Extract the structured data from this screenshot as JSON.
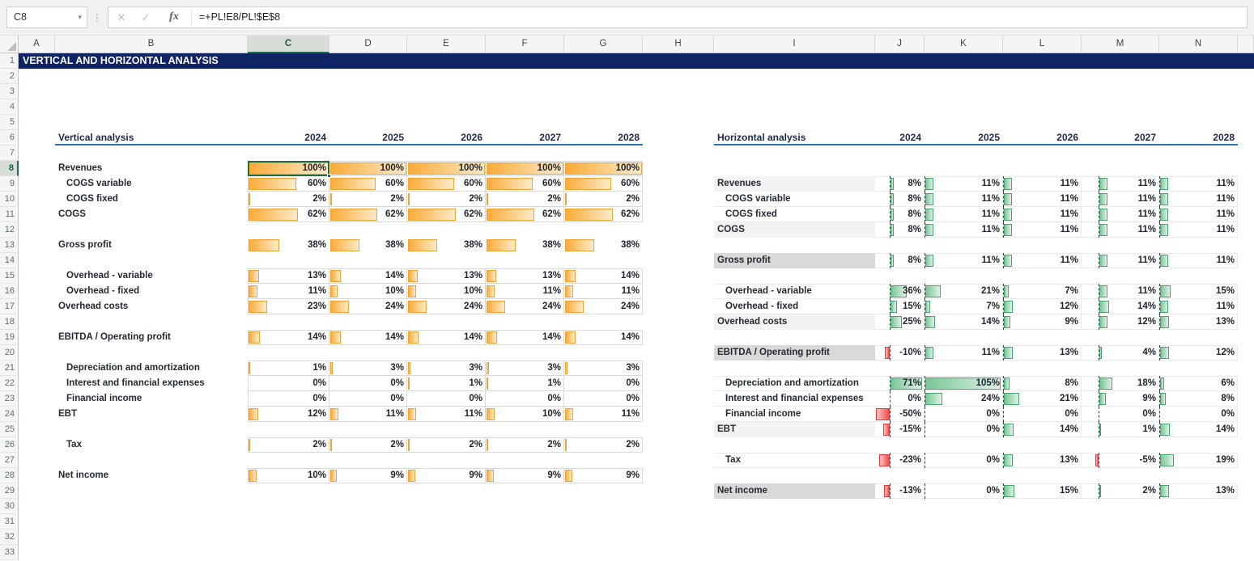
{
  "sheet_title": "VERTICAL AND HORIZONTAL ANALYSIS",
  "formula_bar": {
    "cell_ref": "C8",
    "formula": "=+PL!E8/PL!$E$8",
    "fx_label": "fx"
  },
  "selected_cell": {
    "column": "C",
    "row": 8
  },
  "columns": [
    "A",
    "B",
    "C",
    "D",
    "E",
    "F",
    "G",
    "H",
    "I",
    "J",
    "K",
    "L",
    "M",
    "N"
  ],
  "row_count": 33,
  "years": [
    "2024",
    "2025",
    "2026",
    "2027",
    "2028"
  ],
  "vertical": {
    "title": "Vertical analysis",
    "rows": [
      {
        "label": "Revenues",
        "row": 8,
        "indent": false,
        "boxed": true,
        "values": [
          100,
          100,
          100,
          100,
          100
        ]
      },
      {
        "label": "COGS variable",
        "row": 9,
        "indent": true,
        "boxed": true,
        "values": [
          60,
          60,
          60,
          60,
          60
        ]
      },
      {
        "label": "COGS fixed",
        "row": 10,
        "indent": true,
        "boxed": true,
        "values": [
          2,
          2,
          2,
          2,
          2
        ]
      },
      {
        "label": "COGS",
        "row": 11,
        "indent": false,
        "boxed": true,
        "values": [
          62,
          62,
          62,
          62,
          62
        ]
      },
      {
        "label": "Gross profit",
        "row": 13,
        "indent": false,
        "boxed": false,
        "values": [
          38,
          38,
          38,
          38,
          38
        ]
      },
      {
        "label": "Overhead - variable",
        "row": 15,
        "indent": true,
        "boxed": true,
        "values": [
          13,
          14,
          13,
          13,
          14
        ]
      },
      {
        "label": "Overhead  - fixed",
        "row": 16,
        "indent": true,
        "boxed": true,
        "values": [
          11,
          10,
          10,
          11,
          11
        ]
      },
      {
        "label": "Overhead costs",
        "row": 17,
        "indent": false,
        "boxed": true,
        "values": [
          23,
          24,
          24,
          24,
          24
        ]
      },
      {
        "label": "EBITDA / Operating profit",
        "row": 19,
        "indent": false,
        "boxed": true,
        "values": [
          14,
          14,
          14,
          14,
          14
        ]
      },
      {
        "label": "Depreciation and amortization",
        "row": 21,
        "indent": true,
        "boxed": true,
        "values": [
          1,
          3,
          3,
          3,
          3
        ]
      },
      {
        "label": "Interest and financial expenses",
        "row": 22,
        "indent": true,
        "boxed": true,
        "values": [
          0,
          0,
          1,
          1,
          0
        ]
      },
      {
        "label": "Financial income",
        "row": 23,
        "indent": true,
        "boxed": true,
        "values": [
          0,
          0,
          0,
          0,
          0
        ]
      },
      {
        "label": "EBT",
        "row": 24,
        "indent": false,
        "boxed": true,
        "values": [
          12,
          11,
          11,
          10,
          11
        ]
      },
      {
        "label": "Tax",
        "row": 26,
        "indent": true,
        "boxed": true,
        "values": [
          2,
          2,
          2,
          2,
          2
        ]
      },
      {
        "label": "Net income",
        "row": 28,
        "indent": false,
        "boxed": true,
        "values": [
          10,
          9,
          9,
          9,
          9
        ]
      }
    ]
  },
  "horizontal": {
    "title": "Horizontal analysis",
    "rows": [
      {
        "label": "Revenues",
        "row": 9,
        "indent": false,
        "shade": "light",
        "values": [
          8,
          11,
          11,
          11,
          11
        ]
      },
      {
        "label": "COGS variable",
        "row": 10,
        "indent": true,
        "shade": "none",
        "values": [
          8,
          11,
          11,
          11,
          11
        ]
      },
      {
        "label": "COGS fixed",
        "row": 11,
        "indent": true,
        "shade": "none",
        "values": [
          8,
          11,
          11,
          11,
          11
        ]
      },
      {
        "label": "COGS",
        "row": 12,
        "indent": false,
        "shade": "light",
        "values": [
          8,
          11,
          11,
          11,
          11
        ]
      },
      {
        "label": "Gross profit",
        "row": 14,
        "indent": false,
        "shade": "dark",
        "values": [
          8,
          11,
          11,
          11,
          11
        ]
      },
      {
        "label": "Overhead - variable",
        "row": 16,
        "indent": true,
        "shade": "none",
        "values": [
          36,
          21,
          7,
          11,
          15
        ]
      },
      {
        "label": "Overhead  - fixed",
        "row": 17,
        "indent": true,
        "shade": "none",
        "values": [
          15,
          7,
          12,
          14,
          11
        ]
      },
      {
        "label": "Overhead costs",
        "row": 18,
        "indent": false,
        "shade": "light",
        "values": [
          25,
          14,
          9,
          12,
          13
        ]
      },
      {
        "label": "EBITDA / Operating profit",
        "row": 20,
        "indent": false,
        "shade": "dark",
        "values": [
          -10,
          11,
          13,
          4,
          12
        ]
      },
      {
        "label": "Depreciation and amortization",
        "row": 22,
        "indent": true,
        "shade": "none",
        "values": [
          71,
          105,
          8,
          18,
          6
        ]
      },
      {
        "label": "Interest and financial expenses",
        "row": 23,
        "indent": true,
        "shade": "none",
        "values": [
          0,
          24,
          21,
          9,
          8
        ]
      },
      {
        "label": "Financial income",
        "row": 24,
        "indent": true,
        "shade": "none",
        "values": [
          -50,
          0,
          0,
          0,
          0
        ]
      },
      {
        "label": "EBT",
        "row": 25,
        "indent": false,
        "shade": "light",
        "values": [
          -15,
          0,
          14,
          1,
          14
        ]
      },
      {
        "label": "Tax",
        "row": 27,
        "indent": true,
        "shade": "none",
        "values": [
          -23,
          0,
          13,
          -5,
          19
        ]
      },
      {
        "label": "Net income",
        "row": 29,
        "indent": false,
        "shade": "dark",
        "values": [
          -13,
          0,
          15,
          2,
          13
        ]
      }
    ],
    "bar_scale_max": 110,
    "axis_fractions": [
      0.3,
      0,
      0,
      0.22,
      0
    ]
  },
  "colors": {
    "title_bar_bg": "#0E2464",
    "header_underline": "#2E75B6",
    "bar_orange_border": "#F0A232",
    "bar_orange_start": "#FAAB38",
    "bar_orange_end": "#FDEBC8",
    "bar_green_border": "#47A46A",
    "bar_green_start": "#79C697",
    "bar_green_end": "#DFF2E5",
    "bar_red_border": "#E23B3B",
    "bar_red_start": "#FCC9C9",
    "bar_red_end": "#F24A4A",
    "selection_green": "#1D6F42",
    "shade_light": "#F2F2F2",
    "shade_dark": "#D9D9D9",
    "cell_border": "#D9D9D9"
  }
}
